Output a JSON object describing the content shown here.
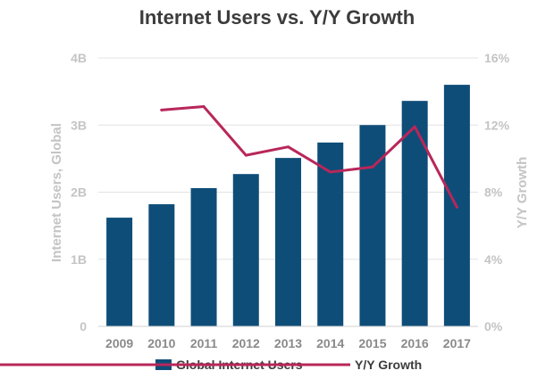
{
  "chart_data": {
    "type": "bar",
    "title": "Internet Users vs. Y/Y Growth",
    "ylabel": "Internet Users, Global",
    "y2label": "Y/Y Growth",
    "categories": [
      "2009",
      "2010",
      "2011",
      "2012",
      "2013",
      "2014",
      "2015",
      "2016",
      "2017"
    ],
    "ylim": [
      0,
      4
    ],
    "y2lim": [
      0,
      16
    ],
    "yticks": [
      0,
      1,
      2,
      3,
      4
    ],
    "ytick_labels": [
      "0",
      "1B",
      "2B",
      "3B",
      "4B"
    ],
    "y2ticks": [
      0,
      4,
      8,
      12,
      16
    ],
    "y2tick_labels": [
      "0%",
      "4%",
      "8%",
      "12%",
      "16%"
    ],
    "grid": true,
    "legend_position": "bottom",
    "series": [
      {
        "name": "Global Internet Users",
        "type": "bar",
        "axis": "left",
        "color": "#0e4d78",
        "values": [
          1.62,
          1.82,
          2.06,
          2.27,
          2.51,
          2.74,
          3.0,
          3.36,
          3.6
        ]
      },
      {
        "name": "Y/Y Growth",
        "type": "line",
        "axis": "right",
        "color": "#b8275a",
        "values": [
          null,
          12.9,
          13.1,
          10.2,
          10.7,
          9.2,
          9.5,
          11.9,
          7.1
        ]
      }
    ]
  }
}
